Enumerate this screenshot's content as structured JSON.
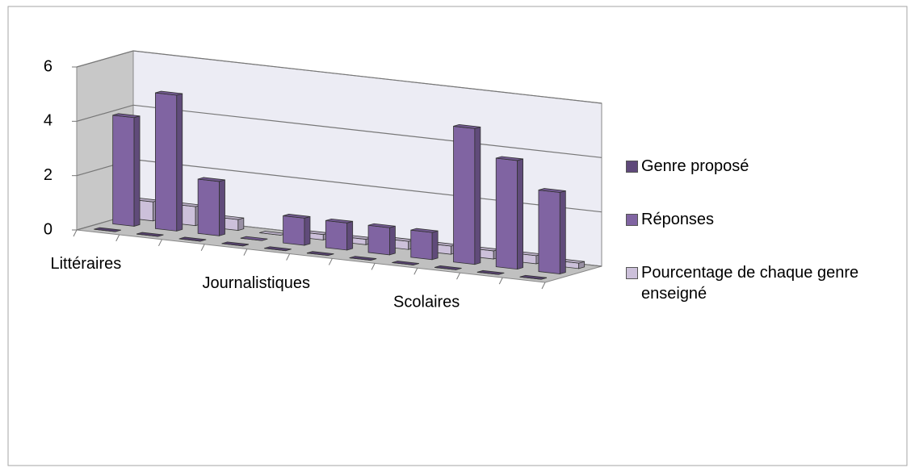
{
  "chart_data": {
    "type": "bar3d",
    "categories": [
      "Littéraires",
      null,
      null,
      null,
      "Journalistiques",
      null,
      null,
      null,
      "Scolaires",
      null,
      null
    ],
    "series": [
      {
        "name": "Genre proposé",
        "color": "#5f497a",
        "values": [
          0,
          0,
          0,
          0,
          0,
          0,
          0,
          0,
          0,
          0,
          0
        ]
      },
      {
        "name": "Réponses",
        "color": "#8064a2",
        "values": [
          4,
          5,
          2,
          0,
          1,
          1,
          1,
          1,
          5,
          4,
          3
        ]
      },
      {
        "name": "Pourcentage de chaque genre enseigné",
        "color": "#ccc0da",
        "values": [
          0.7,
          0.7,
          0.4,
          0,
          0.2,
          0.2,
          0.3,
          0.3,
          0.3,
          0.3,
          0.2
        ]
      }
    ],
    "ylim": [
      0,
      6
    ],
    "yticks": [
      0,
      2,
      4,
      6
    ],
    "grid": true,
    "legend": "right"
  }
}
